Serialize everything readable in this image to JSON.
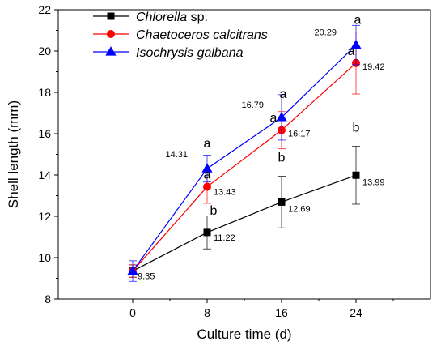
{
  "chart_data": {
    "type": "line",
    "xlabel": "Culture time (d)",
    "ylabel": "Shell length (mm)",
    "x": [
      0,
      8,
      16,
      24
    ],
    "xlim": [
      -8,
      32
    ],
    "ylim": [
      8,
      22
    ],
    "xticks": [
      "0",
      "8",
      "16",
      "24"
    ],
    "yticks": [
      "8",
      "10",
      "12",
      "14",
      "16",
      "18",
      "20",
      "22"
    ],
    "grid": false,
    "legend_position": "top-left",
    "series": [
      {
        "name_italic": "Chlorella",
        "name_suffix": " sp.",
        "color": "#000000",
        "marker": "square",
        "values": [
          9.35,
          11.22,
          12.69,
          13.99
        ],
        "errors": [
          0.3,
          0.8,
          1.25,
          1.4
        ],
        "value_labels": [
          "9.35",
          "11.22",
          "12.69",
          "13.99"
        ],
        "significance": [
          "",
          "b",
          "b",
          "b"
        ]
      },
      {
        "name_italic": "Chaetoceros calcitrans",
        "name_suffix": "",
        "color": "#ff0000",
        "marker": "circle",
        "values": [
          9.35,
          13.43,
          16.17,
          19.42
        ],
        "errors": [
          0.3,
          0.8,
          0.9,
          1.5
        ],
        "value_labels": [
          "",
          "13.43",
          "16.17",
          "19.42"
        ],
        "significance": [
          "",
          "a",
          "a",
          "a"
        ]
      },
      {
        "name_italic": "Isochrysis galbana",
        "name_suffix": "",
        "color": "#0000ff",
        "marker": "triangle",
        "values": [
          9.35,
          14.31,
          16.79,
          20.29
        ],
        "errors": [
          0.5,
          0.65,
          1.1,
          0.95
        ],
        "value_labels": [
          "",
          "14.31",
          "16.79",
          "20.29"
        ],
        "significance": [
          "",
          "a",
          "a",
          "a"
        ]
      }
    ]
  }
}
